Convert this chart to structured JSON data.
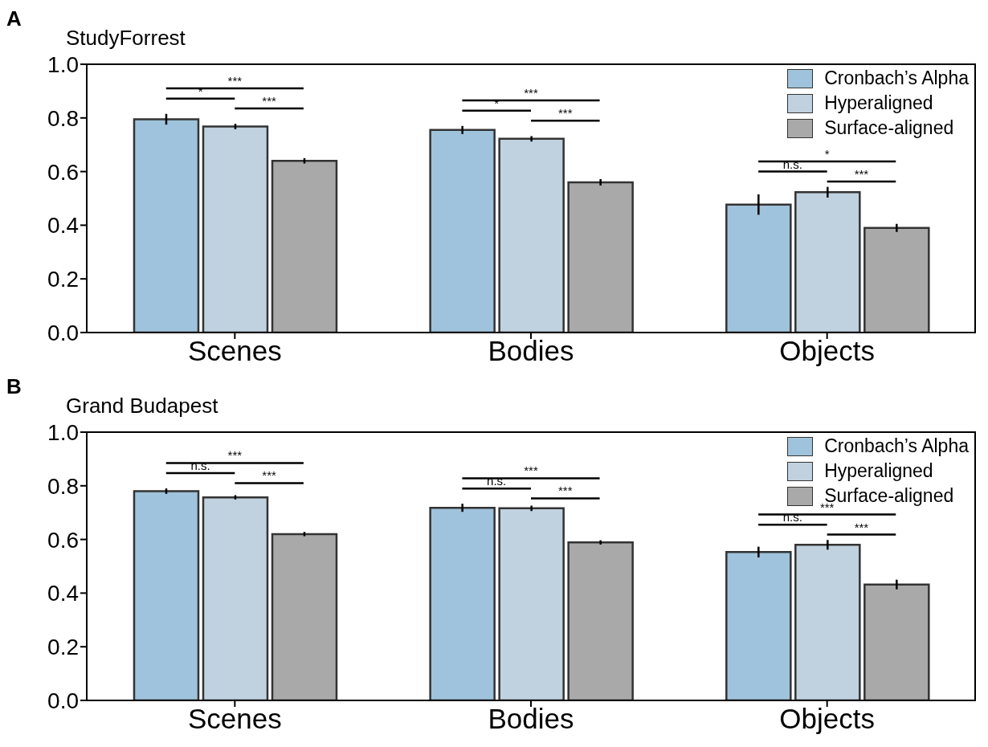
{
  "chart_data": [
    {
      "type": "bar",
      "title": "StudyForrest",
      "categories": [
        "Scenes",
        "Bodies",
        "Objects"
      ],
      "series": [
        {
          "name": "Cronbach’s Alpha",
          "color": "#9fc3dc",
          "values": [
            0.795,
            0.755,
            0.477
          ],
          "errors": [
            0.02,
            0.015,
            0.038
          ]
        },
        {
          "name": "Hyperaligned",
          "color": "#c0d1df",
          "values": [
            0.768,
            0.722,
            0.523
          ],
          "errors": [
            0.01,
            0.01,
            0.02
          ]
        },
        {
          "name": "Surface-aligned",
          "color": "#a9a9a9",
          "values": [
            0.64,
            0.56,
            0.39
          ],
          "errors": [
            0.01,
            0.012,
            0.015
          ]
        }
      ],
      "ylim": [
        0,
        1
      ],
      "yticks": [
        {
          "value": 0,
          "label": "0.0"
        },
        {
          "value": 0.2,
          "label": "0.2"
        },
        {
          "value": 0.4,
          "label": "0.4"
        },
        {
          "value": 0.6,
          "label": "0.6"
        },
        {
          "value": 0.8,
          "label": "0.8"
        },
        {
          "value": 1,
          "label": "1.0"
        }
      ],
      "grid": false,
      "legend": "top right",
      "annotations": [
        "A",
        "***",
        "*",
        "***",
        "***",
        "*",
        "***",
        "*",
        "n.s.",
        "***"
      ]
    },
    {
      "type": "bar",
      "title": "Grand Budapest",
      "categories": [
        "Scenes",
        "Bodies",
        "Objects"
      ],
      "series": [
        {
          "name": "Cronbach’s Alpha",
          "color": "#9fc3dc",
          "values": [
            0.78,
            0.718,
            0.553
          ],
          "errors": [
            0.01,
            0.015,
            0.02
          ]
        },
        {
          "name": "Hyperaligned",
          "color": "#c0d1df",
          "values": [
            0.757,
            0.716,
            0.58
          ],
          "errors": [
            0.008,
            0.01,
            0.018
          ]
        },
        {
          "name": "Surface-aligned",
          "color": "#a9a9a9",
          "values": [
            0.62,
            0.589,
            0.432
          ],
          "errors": [
            0.008,
            0.008,
            0.018
          ]
        }
      ],
      "ylim": [
        0,
        1
      ],
      "yticks": [
        {
          "value": 0,
          "label": "0.0"
        },
        {
          "value": 0.2,
          "label": "0.2"
        },
        {
          "value": 0.4,
          "label": "0.4"
        },
        {
          "value": 0.6,
          "label": "0.6"
        },
        {
          "value": 0.8,
          "label": "0.8"
        },
        {
          "value": 1,
          "label": "1.0"
        }
      ],
      "grid": false,
      "legend": "top right",
      "annotations": [
        "B",
        "***",
        "n.s.",
        "***",
        "***",
        "n.s.",
        "***",
        "***",
        "n.s.",
        "***"
      ]
    }
  ]
}
